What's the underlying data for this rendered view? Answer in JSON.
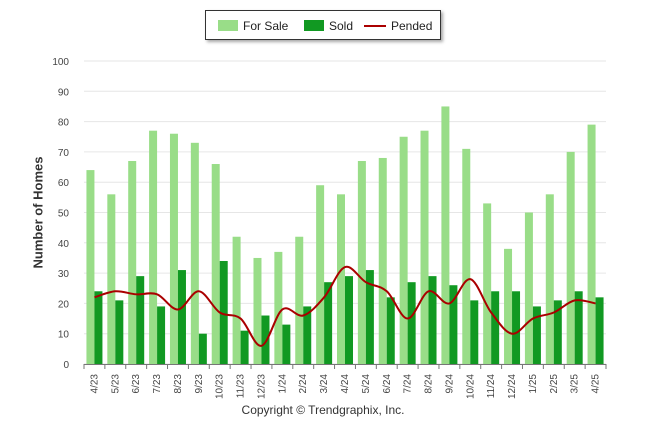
{
  "chart_data": {
    "type": "bar",
    "title": "",
    "xlabel": "",
    "ylabel": "Number of Homes",
    "ylim": [
      0,
      100
    ],
    "yticks": [
      0,
      10,
      20,
      30,
      40,
      50,
      60,
      70,
      80,
      90,
      100
    ],
    "grid": true,
    "legend_position": "top-center",
    "categories": [
      "4/23",
      "5/23",
      "6/23",
      "7/23",
      "8/23",
      "9/23",
      "10/23",
      "11/23",
      "12/23",
      "1/24",
      "2/24",
      "3/24",
      "4/24",
      "5/24",
      "6/24",
      "7/24",
      "8/24",
      "9/24",
      "10/24",
      "11/24",
      "12/24",
      "1/25",
      "2/25",
      "3/25",
      "4/25"
    ],
    "series": [
      {
        "name": "For Sale",
        "kind": "bar",
        "color": "#99dd88",
        "values": [
          64,
          56,
          67,
          77,
          76,
          73,
          66,
          42,
          35,
          37,
          42,
          59,
          56,
          67,
          68,
          75,
          77,
          85,
          71,
          53,
          38,
          50,
          56,
          70,
          79
        ]
      },
      {
        "name": "Sold",
        "kind": "bar",
        "color": "#119922",
        "values": [
          24,
          21,
          29,
          19,
          31,
          10,
          34,
          11,
          16,
          13,
          19,
          27,
          29,
          31,
          22,
          27,
          29,
          26,
          21,
          24,
          24,
          19,
          21,
          24,
          22
        ]
      },
      {
        "name": "Pended",
        "kind": "line",
        "color": "#aa0000",
        "values": [
          22,
          24,
          23,
          23,
          18,
          24,
          17,
          15,
          6,
          18,
          16,
          22,
          32,
          27,
          24,
          15,
          24,
          20,
          28,
          17,
          10,
          15,
          17,
          21,
          20
        ]
      }
    ]
  },
  "footer": {
    "copyright": "Copyright © Trendgraphix, Inc."
  }
}
